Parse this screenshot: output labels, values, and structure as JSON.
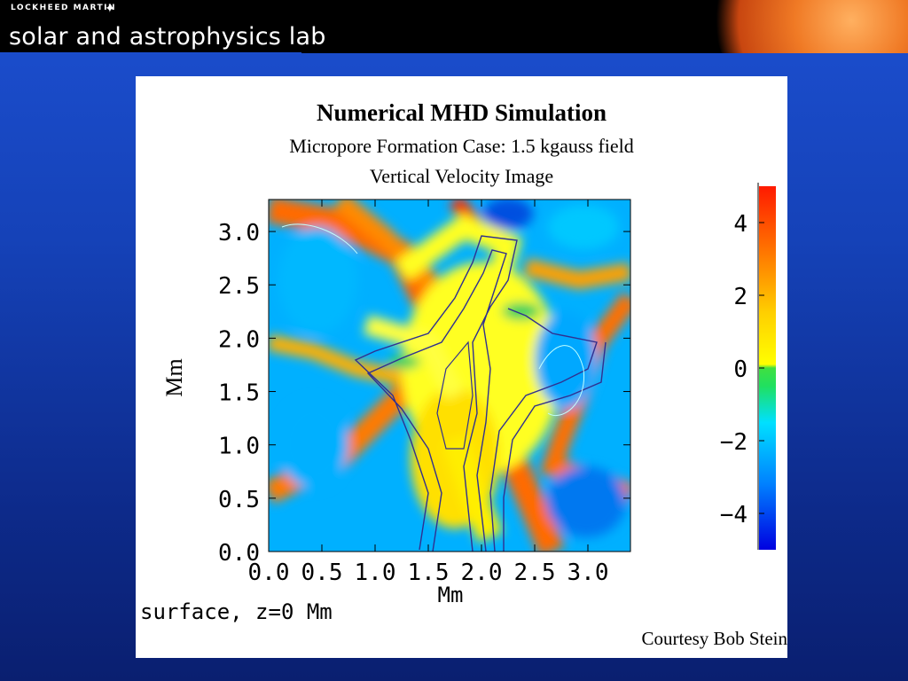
{
  "header": {
    "logo_text": "LOCKHEED MARTIN",
    "lab_title": "solar and astrophysics lab"
  },
  "slide": {
    "title": "Numerical MHD Simulation",
    "subtitle": "Micropore Formation Case: 1.5 kgauss field",
    "subtitle2": "Vertical Velocity Image",
    "credit": "Courtesy Bob Stein"
  },
  "chart_data": {
    "type": "heatmap",
    "xlabel": "Mm",
    "ylabel": "Mm",
    "caption": "surface, z=0 Mm",
    "xticks": [
      "0.0",
      "0.5",
      "1.0",
      "1.5",
      "2.0",
      "2.5",
      "3.0"
    ],
    "yticks": [
      "0.0",
      "0.5",
      "1.0",
      "1.5",
      "2.0",
      "2.5",
      "3.0"
    ],
    "xlim": [
      0,
      3.4
    ],
    "ylim": [
      0,
      3.3
    ],
    "colorbar": {
      "ticks": [
        "4",
        "2",
        "0",
        "−2",
        "−4"
      ],
      "range": [
        -5,
        5
      ],
      "colors": [
        "#0000e0",
        "#00a0ff",
        "#00e0ff",
        "#20e060",
        "#ffff00",
        "#ffd000",
        "#ff8000",
        "#ff2000"
      ]
    }
  }
}
